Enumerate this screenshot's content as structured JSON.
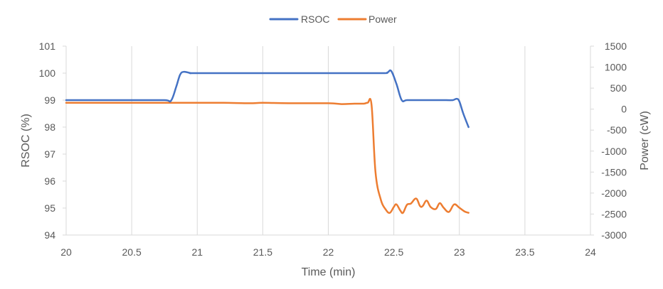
{
  "chart_data": {
    "type": "line",
    "xlabel": "Time (min)",
    "ylabel_left": "RSOC (%)",
    "ylabel_right": "Power (cW)",
    "xlim": [
      20,
      24
    ],
    "x_ticks": [
      "20",
      "20.5",
      "21",
      "21.5",
      "22",
      "22.5",
      "23",
      "23.5",
      "24"
    ],
    "ylim_left": [
      94,
      101
    ],
    "y_ticks_left": [
      "94",
      "95",
      "96",
      "97",
      "98",
      "99",
      "100",
      "101"
    ],
    "ylim_right": [
      -3000,
      1500
    ],
    "y_ticks_right": [
      "-3000",
      "-2500",
      "-2000",
      "-1500",
      "-1000",
      "-500",
      "0",
      "500",
      "1000",
      "1500"
    ],
    "grid": "vertical",
    "legend_position": "top-center",
    "series": [
      {
        "name": "RSOC",
        "axis": "left",
        "color": "#4472C4",
        "x": [
          20.0,
          20.5,
          20.75,
          20.8,
          20.84,
          20.87,
          20.9,
          20.95,
          21.0,
          21.5,
          22.0,
          22.4,
          22.45,
          22.48,
          22.52,
          22.56,
          22.6,
          22.7,
          22.8,
          22.9,
          22.95,
          22.98,
          23.0,
          23.03,
          23.07
        ],
        "y": [
          99.0,
          99.0,
          99.0,
          98.98,
          99.5,
          99.95,
          100.05,
          100.0,
          100.0,
          100.0,
          100.0,
          100.0,
          100.02,
          100.08,
          99.6,
          99.0,
          99.0,
          99.0,
          99.0,
          99.0,
          99.0,
          99.05,
          98.95,
          98.5,
          98.0
        ]
      },
      {
        "name": "Power",
        "axis": "right",
        "color": "#ED7D31",
        "x": [
          20.0,
          20.5,
          21.0,
          21.2,
          21.4,
          21.5,
          21.7,
          22.0,
          22.1,
          22.2,
          22.27,
          22.3,
          22.33,
          22.36,
          22.4,
          22.44,
          22.47,
          22.5,
          22.52,
          22.55,
          22.57,
          22.6,
          22.63,
          22.67,
          22.7,
          22.72,
          22.75,
          22.78,
          22.82,
          22.85,
          22.88,
          22.92,
          22.96,
          23.0,
          23.04,
          23.07
        ],
        "y": [
          150,
          150,
          150,
          150,
          140,
          150,
          140,
          140,
          120,
          130,
          130,
          150,
          100,
          -1500,
          -2150,
          -2400,
          -2470,
          -2330,
          -2270,
          -2420,
          -2470,
          -2280,
          -2250,
          -2130,
          -2310,
          -2310,
          -2180,
          -2330,
          -2380,
          -2240,
          -2350,
          -2450,
          -2270,
          -2350,
          -2440,
          -2470
        ]
      }
    ]
  }
}
